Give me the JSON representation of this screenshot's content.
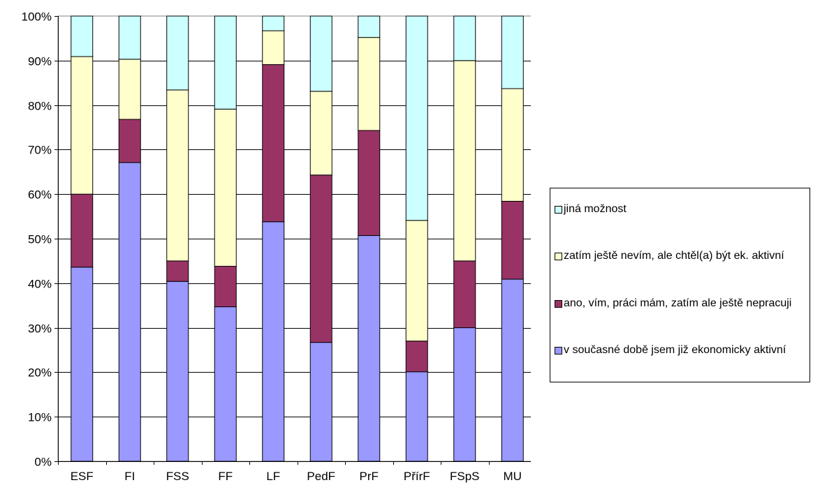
{
  "chart_data": {
    "type": "bar",
    "stacked": true,
    "normalized": true,
    "categories": [
      "ESF",
      "FI",
      "FSS",
      "FF",
      "LF",
      "PedF",
      "PrF",
      "PřírF",
      "FSpS",
      "MU"
    ],
    "ylim": [
      0,
      100
    ],
    "yticks": [
      "0%",
      "10%",
      "20%",
      "30%",
      "40%",
      "50%",
      "60%",
      "70%",
      "80%",
      "90%",
      "100%"
    ],
    "grid": true,
    "legend_position": "right",
    "series": [
      {
        "name": "v současné době jsem již ekonomicky aktivní",
        "color": "#9999ff",
        "values": [
          43.6,
          67.1,
          40.4,
          34.7,
          53.8,
          26.7,
          50.7,
          20.1,
          30.0,
          40.9
        ]
      },
      {
        "name": "ano, vím, práci mám, zatím ale ještě nepracuji",
        "color": "#993366",
        "values": [
          16.4,
          9.7,
          4.6,
          9.1,
          35.3,
          37.6,
          23.6,
          6.9,
          15.0,
          17.5
        ]
      },
      {
        "name": "zatím ještě nevím, ale chtěl(a) být ek. aktivní",
        "color": "#ffffcc",
        "values": [
          30.9,
          13.5,
          38.4,
          35.3,
          7.6,
          18.8,
          20.9,
          27.1,
          45.0,
          25.3
        ]
      },
      {
        "name": "jiná možnost",
        "color": "#ccffff",
        "values": [
          9.1,
          9.7,
          16.6,
          20.9,
          3.3,
          16.9,
          4.8,
          45.9,
          10.0,
          16.3
        ]
      }
    ],
    "legend_order": [
      3,
      2,
      1,
      0
    ]
  }
}
